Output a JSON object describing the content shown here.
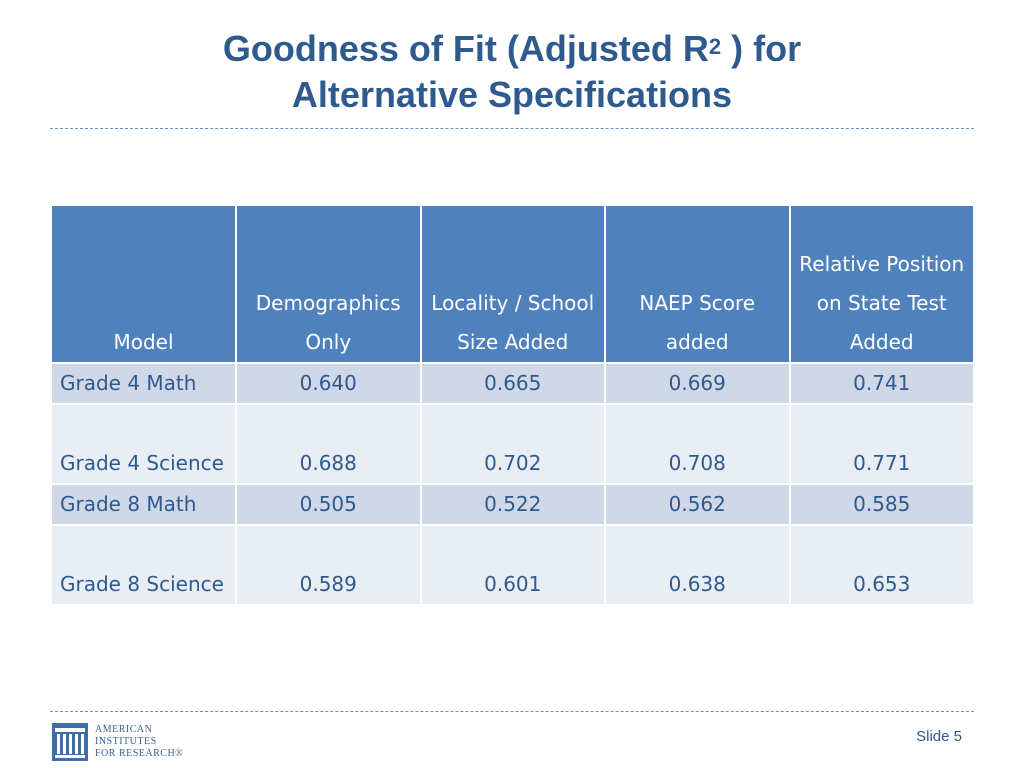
{
  "title": {
    "line1_prefix": "Goodness of Fit (Adjusted R",
    "line1_sup": "2",
    "line1_suffix": " ) for",
    "line2": "Alternative Specifications"
  },
  "table": {
    "headers": [
      "Model",
      "Demographics Only",
      "Locality / School Size Added",
      "NAEP Score added",
      "Relative Position on State Test Added"
    ],
    "rows": [
      {
        "model": "Grade 4 Math",
        "values": [
          "0.640",
          "0.665",
          "0.669",
          "0.741"
        ]
      },
      {
        "model": "Grade 4 Science",
        "values": [
          "0.688",
          "0.702",
          "0.708",
          "0.771"
        ]
      },
      {
        "model": "Grade 8 Math",
        "values": [
          "0.505",
          "0.522",
          "0.562",
          "0.585"
        ]
      },
      {
        "model": "Grade 8 Science",
        "values": [
          "0.589",
          "0.601",
          "0.638",
          "0.653"
        ]
      }
    ]
  },
  "footer": {
    "logo_lines": [
      "American",
      "Institutes",
      "for Research®"
    ],
    "slide_number": "Slide 5"
  },
  "colors": {
    "title": "#2e5a8e",
    "header_bg": "#4f81bd",
    "row_odd": "#d0d8e8",
    "row_even": "#e9edf4"
  },
  "icons": {
    "logo": "air-columns-icon"
  }
}
